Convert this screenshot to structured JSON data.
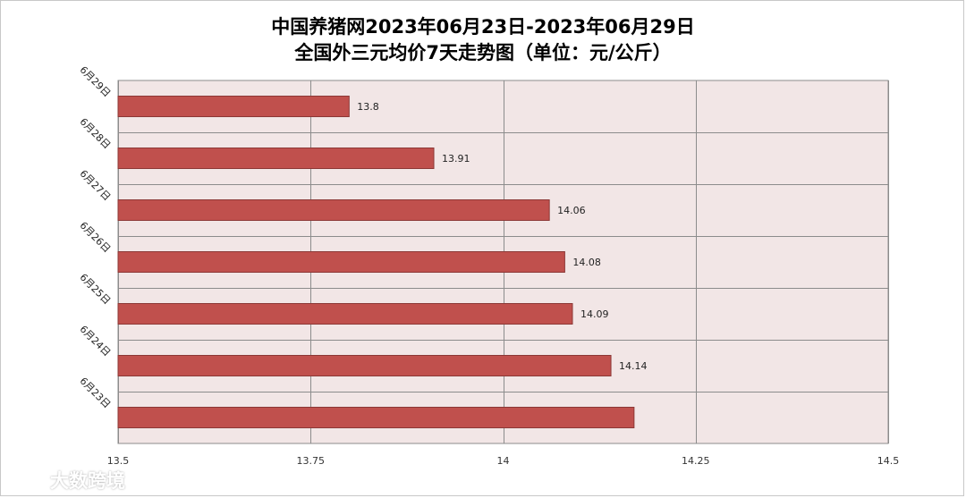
{
  "chart_data": {
    "type": "bar",
    "orientation": "horizontal",
    "title": "中国养猪网2023年06月23日-2023年06月29日",
    "subtitle": "全国外三元均价7天走势图（单位：元/公斤）",
    "categories": [
      "6月29日",
      "6月28日",
      "6月27日",
      "6月26日",
      "6月25日",
      "6月24日",
      "6月23日"
    ],
    "values": [
      13.8,
      13.91,
      14.06,
      14.08,
      14.09,
      14.14,
      14.17
    ],
    "data_labels": [
      "13.8",
      "13.91",
      "14.06",
      "14.08",
      "14.09",
      "14.14",
      ""
    ],
    "xlim": [
      13.5,
      14.5
    ],
    "x_ticks": [
      "13.5",
      "13.75",
      "14",
      "14.25",
      "14.5"
    ],
    "grid": true,
    "legend": "none",
    "colors": {
      "bar_fill": "#c0504d",
      "bar_stroke": "#8c3836",
      "plot_background": "#f2e6e6",
      "grid": "#8c8c8c"
    }
  },
  "watermark": {
    "text": "大数跨境",
    "icon": "brand-logo-icon"
  }
}
